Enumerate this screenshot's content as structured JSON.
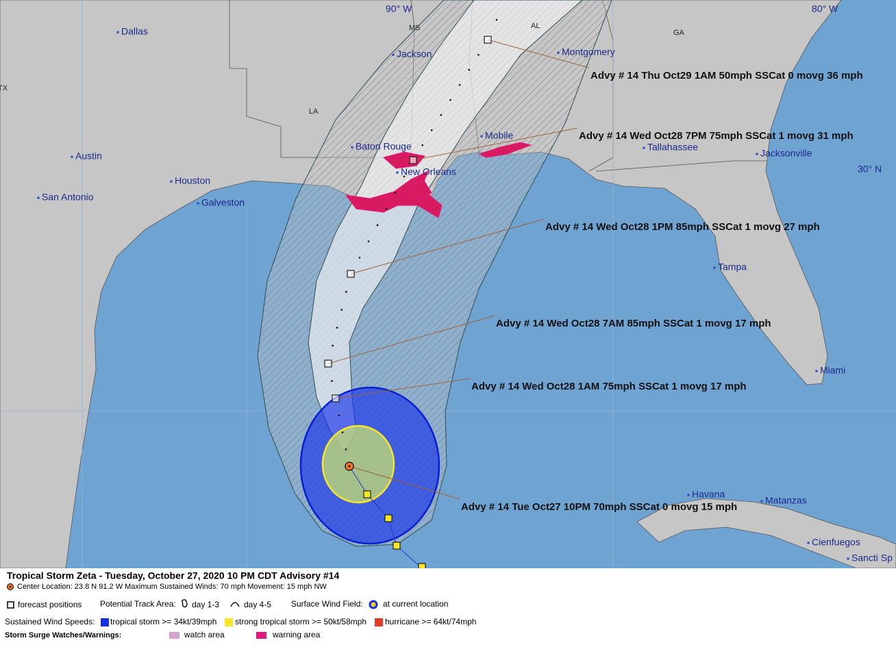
{
  "map": {
    "meridians": [
      "90° W",
      "80° W"
    ],
    "parallels": [
      "30° N"
    ],
    "states": [
      "MS",
      "AL",
      "GA",
      "LA",
      "TX"
    ],
    "cities": [
      "Dallas",
      "Jackson",
      "Montgomery",
      "Austin",
      "Baton Rouge",
      "Mobile",
      "Tallahassee",
      "Jacksonville",
      "Houston",
      "New Orleans",
      "San Antonio",
      "Galveston",
      "Tampa",
      "Miami",
      "Havana",
      "Matanzas",
      "Cienfuegos",
      "Sancti Sp"
    ],
    "advisories": [
      "Advy # 14 Thu Oct29 1AM  50mph SSCat 0 movg 36 mph",
      "Advy # 14 Wed Oct28 7PM  75mph SSCat 1 movg 31 mph",
      "Advy # 14 Wed Oct28 1PM  85mph SSCat 1 movg 27 mph",
      "Advy # 14 Wed Oct28 7AM  85mph SSCat 1 movg 17 mph",
      "Advy # 14 Wed Oct28 1AM  75mph SSCat 1 movg 17 mph",
      "Advy # 14 Tue Oct27 10PM  70mph SSCat 0 movg 15 mph"
    ]
  },
  "legend": {
    "title": "Tropical Storm Zeta  -  Tuesday, October 27, 2020  10 PM CDT   Advisory #14",
    "details": "Center Location: 23.8 N  91.2 W   Maximum Sustained Winds: 70 mph   Movement: 15 mph NW",
    "forecast": "forecast positions",
    "track_area": "Potential Track Area:",
    "day13": "day 1-3",
    "day45": "day 4-5",
    "wind_field": "Surface Wind Field:",
    "current": "at current location",
    "wind_speeds": "Sustained Wind Speeds:",
    "ts": "tropical storm >= 34kt/39mph",
    "sts": "strong tropical storm >= 50kt/58mph",
    "hu": "hurricane >= 64kt/74mph",
    "surge": "Storm Surge Watches/Warnings:",
    "watch": "watch area",
    "warning": "warning area"
  }
}
